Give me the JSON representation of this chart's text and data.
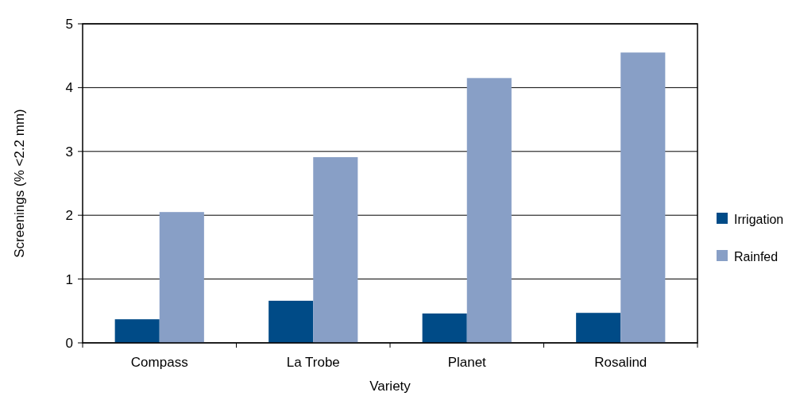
{
  "chart_data": {
    "type": "bar",
    "xlabel": "Variety",
    "ylabel": "Screenings (% <2.2 mm)",
    "categories": [
      "Compass",
      "La Trobe",
      "Planet",
      "Rosalind"
    ],
    "series": [
      {
        "name": "Irrigation",
        "color": "#004b87",
        "values": [
          0.37,
          0.66,
          0.46,
          0.47
        ]
      },
      {
        "name": "Rainfed",
        "color": "#889fc6",
        "values": [
          2.05,
          2.91,
          4.15,
          4.55
        ]
      }
    ],
    "ylim": [
      0,
      5
    ],
    "yticks": [
      0,
      1,
      2,
      3,
      4,
      5
    ],
    "grid": "y",
    "legend": "right"
  }
}
